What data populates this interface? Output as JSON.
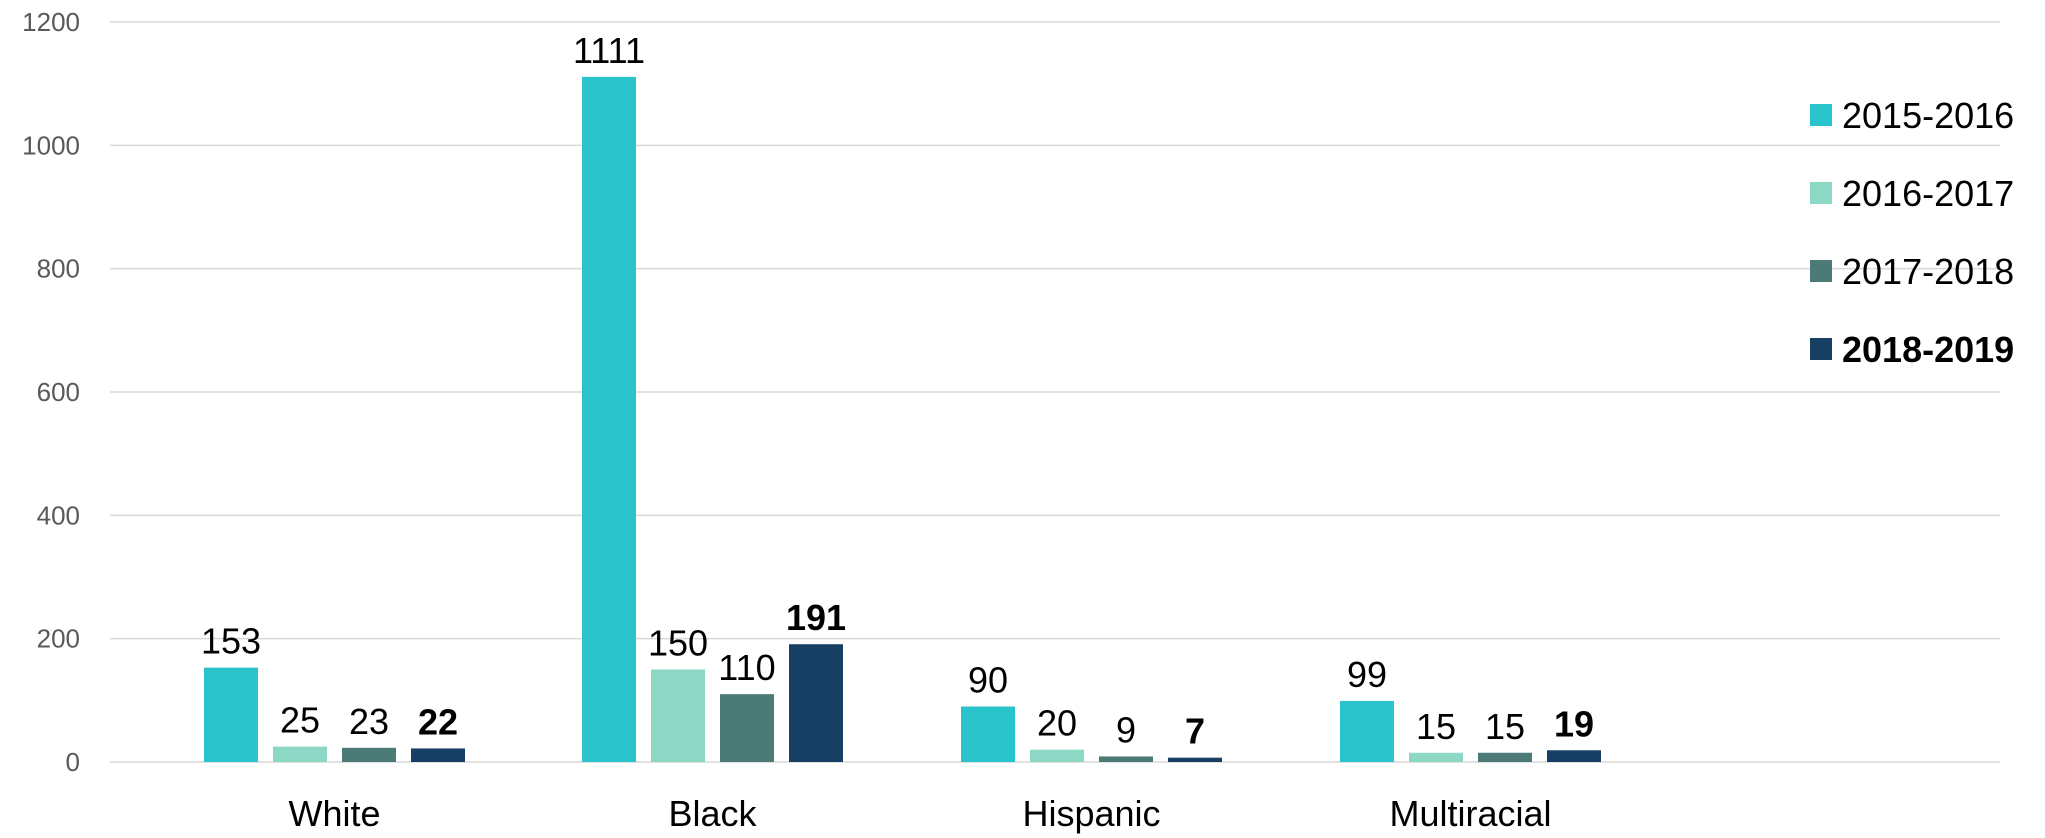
{
  "chart_data": {
    "type": "bar",
    "categories": [
      "White",
      "Black",
      "Hispanic",
      "Multiracial"
    ],
    "series": [
      {
        "name": "2015-2016",
        "values": [
          153,
          1111,
          90,
          99
        ],
        "color": "#29C3CB",
        "bold": false
      },
      {
        "name": "2016-2017",
        "values": [
          25,
          150,
          20,
          15
        ],
        "color": "#8DD8C5",
        "bold": false
      },
      {
        "name": "2017-2018",
        "values": [
          23,
          110,
          9,
          15
        ],
        "color": "#4C7A77",
        "bold": false
      },
      {
        "name": "2018-2019",
        "values": [
          22,
          191,
          7,
          19
        ],
        "color": "#163F63",
        "bold": true
      }
    ],
    "yticks": [
      0,
      200,
      400,
      600,
      800,
      1000,
      1200
    ],
    "ylim": [
      0,
      1200
    ],
    "grid": true,
    "legend": "right",
    "title": "",
    "xlabel": "",
    "ylabel": ""
  }
}
